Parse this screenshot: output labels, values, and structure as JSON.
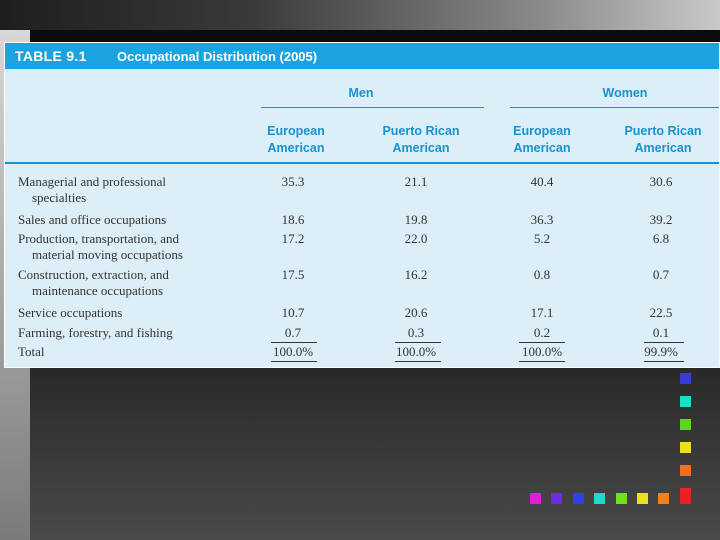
{
  "title": {
    "number": "TABLE 9.1",
    "text": "Occupational Distribution (2005)"
  },
  "groups": {
    "men": "Men",
    "women": "Women"
  },
  "columns": [
    {
      "line1": "European",
      "line2": "American"
    },
    {
      "line1": "Puerto Rican",
      "line2": "American"
    },
    {
      "line1": "European",
      "line2": "American"
    },
    {
      "line1": "Puerto Rican",
      "line2": "American"
    }
  ],
  "rows": [
    {
      "line1": "Managerial and professional",
      "line2": "specialties",
      "values": [
        "35.3",
        "21.1",
        "40.4",
        "30.6"
      ]
    },
    {
      "line1": "Sales and office occupations",
      "line2": "",
      "values": [
        "18.6",
        "19.8",
        "36.3",
        "39.2"
      ]
    },
    {
      "line1": "Production, transportation, and",
      "line2": "material moving occupations",
      "values": [
        "17.2",
        "22.0",
        "5.2",
        "6.8"
      ]
    },
    {
      "line1": "Construction, extraction, and",
      "line2": "maintenance occupations",
      "values": [
        "17.5",
        "16.2",
        "0.8",
        "0.7"
      ]
    },
    {
      "line1": "Service occupations",
      "line2": "",
      "values": [
        "10.7",
        "20.6",
        "17.1",
        "22.5"
      ]
    },
    {
      "line1": "Farming, forestry, and fishing",
      "line2": "",
      "values": [
        "0.7",
        "0.3",
        "0.2",
        "0.1"
      ]
    },
    {
      "line1": "Total",
      "line2": "",
      "values": [
        "100.0%",
        "100.0%",
        "100.0%",
        "99.9%"
      ]
    }
  ],
  "decor_colors": {
    "vertical": [
      "#3a3ad8",
      "#17e0c8",
      "#5ad820",
      "#ece020",
      "#f07020",
      "#ee2222"
    ],
    "horizontal": [
      "#e020d0",
      "#6a30e0",
      "#3040e8",
      "#20d8d0",
      "#70e020",
      "#e8e020",
      "#f08020",
      "#e82020"
    ]
  }
}
